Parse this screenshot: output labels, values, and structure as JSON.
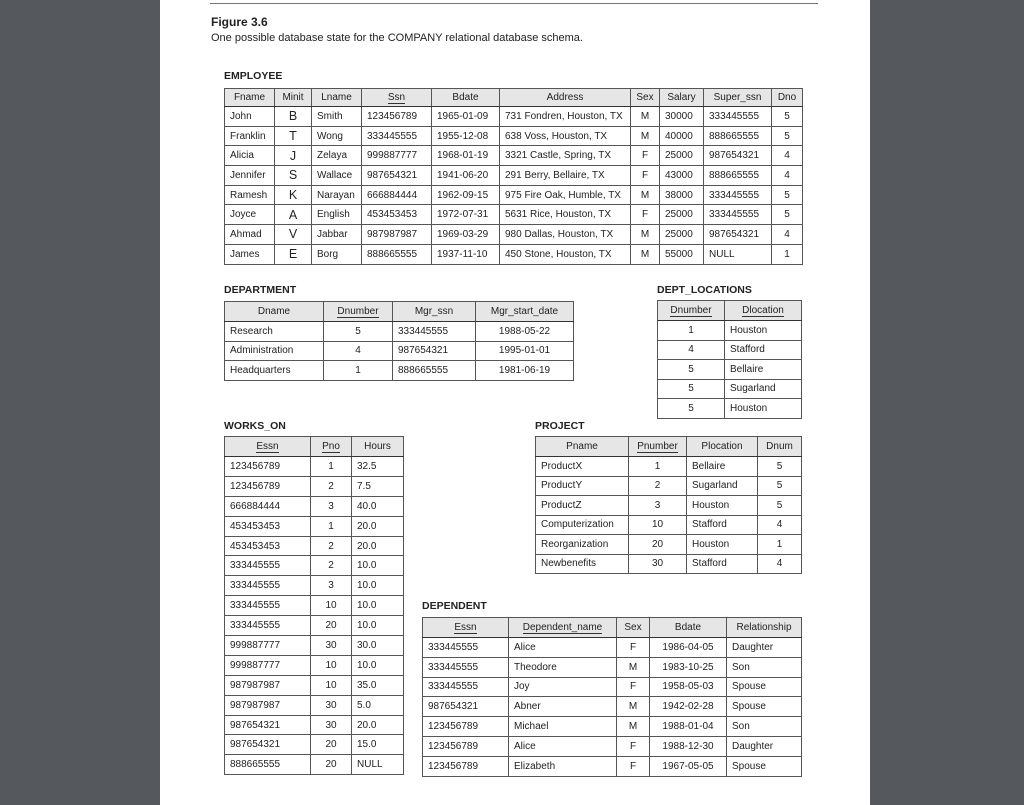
{
  "figure": {
    "title": "Figure 3.6",
    "caption": "One possible database state for the COMPANY relational database schema."
  },
  "tables": [
    {
      "name": "EMPLOYEE",
      "columns": [
        {
          "label": "Fname"
        },
        {
          "label": "Minit"
        },
        {
          "label": "Lname"
        },
        {
          "label": "Ssn",
          "key": true
        },
        {
          "label": "Bdate"
        },
        {
          "label": "Address"
        },
        {
          "label": "Sex"
        },
        {
          "label": "Salary"
        },
        {
          "label": "Super_ssn"
        },
        {
          "label": "Dno"
        }
      ],
      "rows": [
        [
          "John",
          "B",
          "Smith",
          "123456789",
          "1965-01-09",
          "731 Fondren, Houston, TX",
          "M",
          "30000",
          "333445555",
          "5"
        ],
        [
          "Franklin",
          "T",
          "Wong",
          "333445555",
          "1955-12-08",
          "638 Voss, Houston, TX",
          "M",
          "40000",
          "888665555",
          "5"
        ],
        [
          "Alicia",
          "J",
          "Zelaya",
          "999887777",
          "1968-01-19",
          "3321 Castle, Spring, TX",
          "F",
          "25000",
          "987654321",
          "4"
        ],
        [
          "Jennifer",
          "S",
          "Wallace",
          "987654321",
          "1941-06-20",
          "291 Berry, Bellaire, TX",
          "F",
          "43000",
          "888665555",
          "4"
        ],
        [
          "Ramesh",
          "K",
          "Narayan",
          "666884444",
          "1962-09-15",
          "975 Fire Oak, Humble, TX",
          "M",
          "38000",
          "333445555",
          "5"
        ],
        [
          "Joyce",
          "A",
          "English",
          "453453453",
          "1972-07-31",
          "5631 Rice, Houston, TX",
          "F",
          "25000",
          "333445555",
          "5"
        ],
        [
          "Ahmad",
          "V",
          "Jabbar",
          "987987987",
          "1969-03-29",
          "980 Dallas, Houston, TX",
          "M",
          "25000",
          "987654321",
          "4"
        ],
        [
          "James",
          "E",
          "Borg",
          "888665555",
          "1937-11-10",
          "450 Stone, Houston, TX",
          "M",
          "55000",
          "NULL",
          "1"
        ]
      ]
    },
    {
      "name": "DEPARTMENT",
      "columns": [
        {
          "label": "Dname"
        },
        {
          "label": "Dnumber",
          "key": true
        },
        {
          "label": "Mgr_ssn"
        },
        {
          "label": "Mgr_start_date"
        }
      ],
      "rows": [
        [
          "Research",
          "5",
          "333445555",
          "1988-05-22"
        ],
        [
          "Administration",
          "4",
          "987654321",
          "1995-01-01"
        ],
        [
          "Headquarters",
          "1",
          "888665555",
          "1981-06-19"
        ]
      ]
    },
    {
      "name": "DEPT_LOCATIONS",
      "columns": [
        {
          "label": "Dnumber",
          "key": true
        },
        {
          "label": "Dlocation",
          "key": true
        }
      ],
      "rows": [
        [
          "1",
          "Houston"
        ],
        [
          "4",
          "Stafford"
        ],
        [
          "5",
          "Bellaire"
        ],
        [
          "5",
          "Sugarland"
        ],
        [
          "5",
          "Houston"
        ]
      ]
    },
    {
      "name": "WORKS_ON",
      "columns": [
        {
          "label": "Essn",
          "key": true
        },
        {
          "label": "Pno",
          "key": true
        },
        {
          "label": "Hours"
        }
      ],
      "rows": [
        [
          "123456789",
          "1",
          "32.5"
        ],
        [
          "123456789",
          "2",
          "7.5"
        ],
        [
          "666884444",
          "3",
          "40.0"
        ],
        [
          "453453453",
          "1",
          "20.0"
        ],
        [
          "453453453",
          "2",
          "20.0"
        ],
        [
          "333445555",
          "2",
          "10.0"
        ],
        [
          "333445555",
          "3",
          "10.0"
        ],
        [
          "333445555",
          "10",
          "10.0"
        ],
        [
          "333445555",
          "20",
          "10.0"
        ],
        [
          "999887777",
          "30",
          "30.0"
        ],
        [
          "999887777",
          "10",
          "10.0"
        ],
        [
          "987987987",
          "10",
          "35.0"
        ],
        [
          "987987987",
          "30",
          "5.0"
        ],
        [
          "987654321",
          "30",
          "20.0"
        ],
        [
          "987654321",
          "20",
          "15.0"
        ],
        [
          "888665555",
          "20",
          "NULL"
        ]
      ]
    },
    {
      "name": "PROJECT",
      "columns": [
        {
          "label": "Pname"
        },
        {
          "label": "Pnumber",
          "key": true
        },
        {
          "label": "Plocation"
        },
        {
          "label": "Dnum"
        }
      ],
      "rows": [
        [
          "ProductX",
          "1",
          "Bellaire",
          "5"
        ],
        [
          "ProductY",
          "2",
          "Sugarland",
          "5"
        ],
        [
          "ProductZ",
          "3",
          "Houston",
          "5"
        ],
        [
          "Computerization",
          "10",
          "Stafford",
          "4"
        ],
        [
          "Reorganization",
          "20",
          "Houston",
          "1"
        ],
        [
          "Newbenefits",
          "30",
          "Stafford",
          "4"
        ]
      ]
    },
    {
      "name": "DEPENDENT",
      "columns": [
        {
          "label": "Essn",
          "key": true
        },
        {
          "label": "Dependent_name",
          "key": true
        },
        {
          "label": "Sex"
        },
        {
          "label": "Bdate"
        },
        {
          "label": "Relationship"
        }
      ],
      "rows": [
        [
          "333445555",
          "Alice",
          "F",
          "1986-04-05",
          "Daughter"
        ],
        [
          "333445555",
          "Theodore",
          "M",
          "1983-10-25",
          "Son"
        ],
        [
          "333445555",
          "Joy",
          "F",
          "1958-05-03",
          "Spouse"
        ],
        [
          "987654321",
          "Abner",
          "M",
          "1942-02-28",
          "Spouse"
        ],
        [
          "123456789",
          "Michael",
          "M",
          "1988-01-04",
          "Son"
        ],
        [
          "123456789",
          "Alice",
          "F",
          "1988-12-30",
          "Daughter"
        ],
        [
          "123456789",
          "Elizabeth",
          "F",
          "1967-05-05",
          "Spouse"
        ]
      ]
    }
  ]
}
